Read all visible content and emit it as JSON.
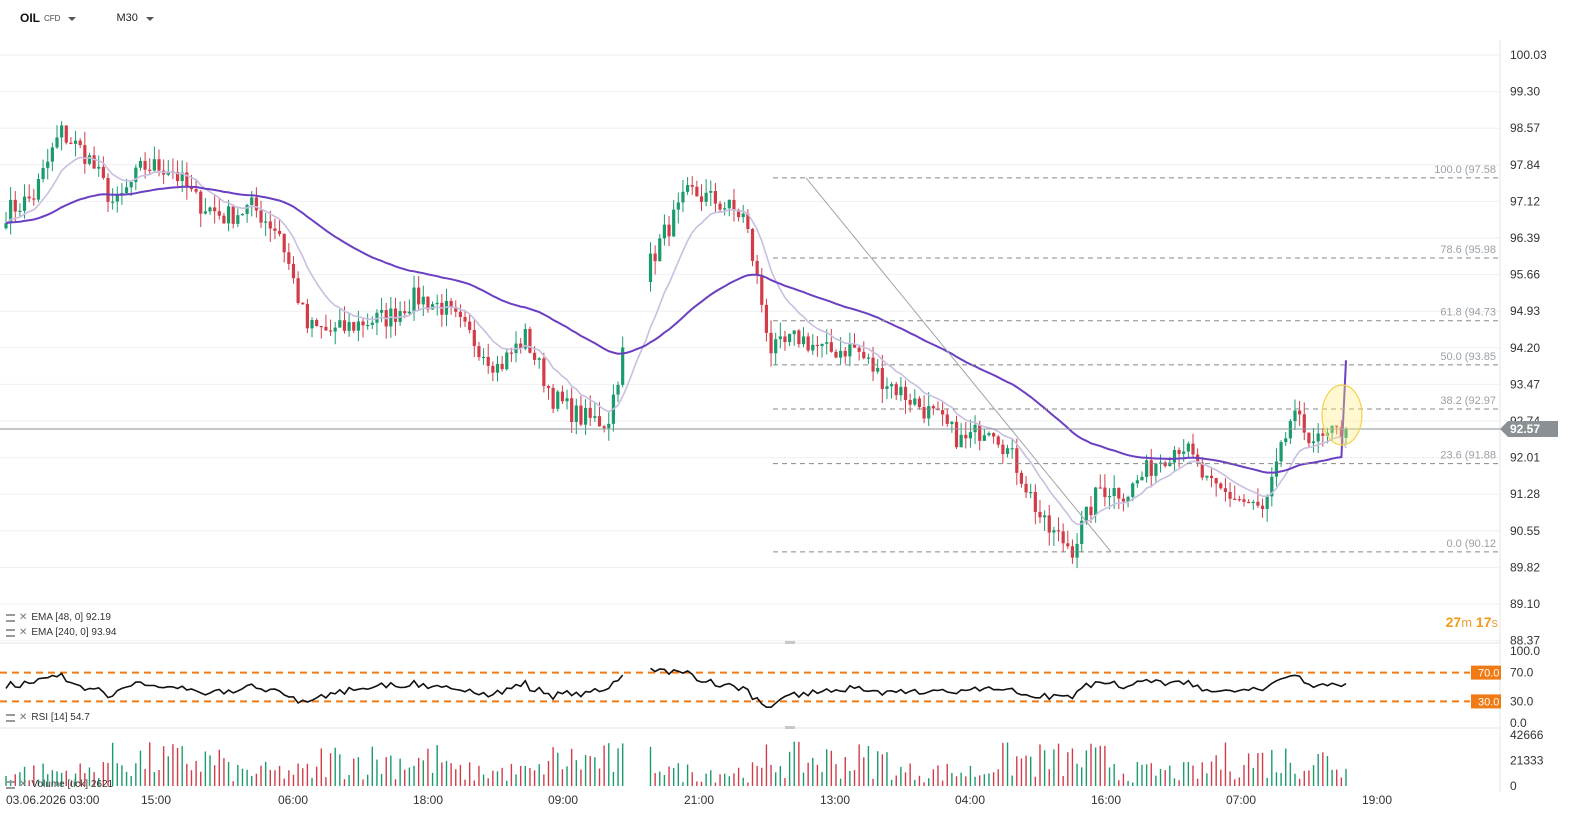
{
  "toolbar": {
    "symbol": "OIL",
    "symbol_type": "CFD",
    "timeframe": "M30"
  },
  "price_panel": {
    "price_ticks": [
      "100.03",
      "99.30",
      "98.57",
      "97.84",
      "97.12",
      "96.39",
      "95.66",
      "94.93",
      "94.20",
      "93.47",
      "92.74",
      "92.01",
      "91.28",
      "90.55",
      "89.82",
      "89.10",
      "88.37"
    ],
    "current_price": "92.57",
    "ema_48_label": "EMA [48, 0] 92.19",
    "ema_240_label": "EMA [240, 0] 93.94",
    "countdown": {
      "minutes": "27",
      "m_unit": "m",
      "seconds": "17",
      "s_unit": "s"
    },
    "fibonacci": [
      {
        "label": "100.0 (97.58",
        "price": 97.58
      },
      {
        "label": "78.6 (95.98",
        "price": 95.98
      },
      {
        "label": "61.8 (94.73",
        "price": 94.73
      },
      {
        "label": "50.0 (93.85",
        "price": 93.85
      },
      {
        "label": "38.2 (92.97",
        "price": 92.97
      },
      {
        "label": "23.6 (91.88",
        "price": 91.88
      },
      {
        "label": "0.0 (90.12",
        "price": 90.12
      }
    ]
  },
  "rsi_panel": {
    "label": "RSI [14] 54.7",
    "ticks": [
      "100.0",
      "70.0",
      "30.0",
      "0.0"
    ],
    "overbought": "70.0",
    "oversold": "30.0"
  },
  "volume_panel": {
    "label": "Volume [tick] 2621",
    "ticks": [
      "42666",
      "21333",
      "0"
    ]
  },
  "time_axis": [
    "03.06.2026 03:00",
    "15:00",
    "06:00",
    "18:00",
    "09:00",
    "21:00",
    "13:00",
    "04:00",
    "16:00",
    "07:00",
    "19:00"
  ],
  "colors": {
    "up": "#1a9b6c",
    "down": "#d23c48",
    "ema48": "#c8bfe0",
    "ema240": "#6a3fc1",
    "rsi_level": "#f07a13",
    "price_tag": "#8b9094"
  },
  "chart_data": {
    "type": "candlestick",
    "symbol": "OIL",
    "timeframe": "M30",
    "y_range": [
      88.37,
      100.03
    ],
    "candles_ohlc_keypoints": [
      {
        "x": "03.06.2026 03:00",
        "close": 96.9
      },
      {
        "x": "09:00",
        "close": 97.2
      },
      {
        "x": "11:00",
        "close": 98.5
      },
      {
        "x": "13:00",
        "close": 98.0
      },
      {
        "x": "15:00",
        "close": 97.0
      },
      {
        "x": "16:00",
        "close": 97.8
      },
      {
        "x": "19:00",
        "close": 97.8
      },
      {
        "x": "21:00",
        "close": 97.1
      },
      {
        "x": "00:00",
        "close": 96.8
      },
      {
        "x": "03:00",
        "close": 97.0
      },
      {
        "x": "06:00",
        "close": 96.5
      },
      {
        "x": "09:00",
        "close": 94.6
      },
      {
        "x": "12:00",
        "close": 94.5
      },
      {
        "x": "15:00",
        "close": 94.7
      },
      {
        "x": "18:00",
        "close": 94.8
      },
      {
        "x": "21:00",
        "close": 95.2
      },
      {
        "x": "00:00",
        "close": 95.0
      },
      {
        "x": "03:00",
        "close": 94.4
      },
      {
        "x": "06:00",
        "close": 93.8
      },
      {
        "x": "09:00",
        "close": 94.4
      },
      {
        "x": "12:00",
        "close": 93.2
      },
      {
        "x": "15:00",
        "close": 92.8
      },
      {
        "x": "18:00",
        "close": 92.7
      },
      {
        "x": "21:00",
        "close": 95.2
      },
      {
        "x": "00:00",
        "close": 96.4
      },
      {
        "x": "03:00",
        "close": 97.3
      },
      {
        "x": "06:00",
        "close": 97.1
      },
      {
        "x": "09:00",
        "close": 96.8
      },
      {
        "x": "11:00",
        "close": 94.1
      },
      {
        "x": "13:00",
        "close": 94.4
      },
      {
        "x": "16:00",
        "close": 94.1
      },
      {
        "x": "19:00",
        "close": 94.2
      },
      {
        "x": "22:00",
        "close": 93.6
      },
      {
        "x": "01:00",
        "close": 93.2
      },
      {
        "x": "04:00",
        "close": 92.8
      },
      {
        "x": "07:00",
        "close": 92.3
      },
      {
        "x": "10:00",
        "close": 92.7
      },
      {
        "x": "12:00",
        "close": 91.8
      },
      {
        "x": "14:00",
        "close": 90.6
      },
      {
        "x": "15:30",
        "close": 90.2
      },
      {
        "x": "16:00",
        "close": 91.4
      },
      {
        "x": "19:00",
        "close": 91.3
      },
      {
        "x": "22:00",
        "close": 91.9
      },
      {
        "x": "01:00",
        "close": 92.3
      },
      {
        "x": "04:00",
        "close": 91.4
      },
      {
        "x": "07:00",
        "close": 91.2
      },
      {
        "x": "10:00",
        "close": 90.9
      },
      {
        "x": "12:00",
        "close": 92.8
      },
      {
        "x": "14:00",
        "close": 92.3
      },
      {
        "x": "16:00",
        "close": 92.57
      }
    ],
    "ema_48_last": 92.19,
    "ema_240_last": 93.94,
    "rsi_14_last": 54.7,
    "rsi_levels": [
      70,
      30
    ],
    "volume_last": 2621,
    "volume_y_range": [
      0,
      42666
    ],
    "grid": true
  }
}
